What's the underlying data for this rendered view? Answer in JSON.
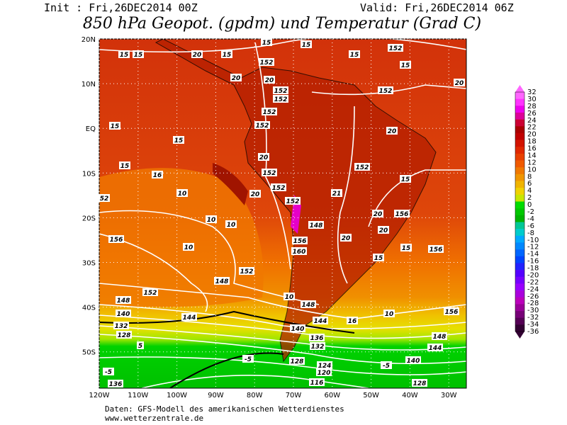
{
  "header": {
    "init": "Init : Fri,26DEC2014 00Z",
    "valid": "Valid: Fri,26DEC2014 06Z",
    "title": "850 hPa Geopot. (gpdm) und Temperatur (Grad C)"
  },
  "map": {
    "lat_labels": [
      "20N",
      "10N",
      "EQ",
      "10S",
      "20S",
      "30S",
      "40S",
      "50S"
    ],
    "lon_labels": [
      "120W",
      "110W",
      "100W",
      "90W",
      "80W",
      "70W",
      "60W",
      "50W",
      "40W",
      "30W"
    ],
    "contour_labels": [
      15,
      15,
      20,
      15,
      15,
      15,
      15,
      152,
      15,
      152,
      20,
      20,
      152,
      152,
      152,
      152,
      20,
      15,
      152,
      15,
      20,
      20,
      15,
      16,
      152,
      152,
      15,
      20,
      152,
      21,
      152,
      10,
      52,
      10,
      10,
      156,
      10,
      20,
      156,
      20,
      148,
      156,
      20,
      160,
      15,
      15,
      156,
      152,
      148,
      152,
      10,
      148,
      148,
      140,
      132,
      144,
      16,
      10,
      156,
      144,
      140,
      148,
      128,
      5,
      136,
      132,
      144,
      140,
      128,
      124,
      -5,
      -5,
      120,
      -5,
      116,
      136,
      128
    ]
  },
  "colorbar": {
    "labels": [
      32,
      30,
      28,
      26,
      24,
      22,
      20,
      18,
      16,
      14,
      12,
      10,
      8,
      6,
      4,
      2,
      0,
      -2,
      -4,
      -6,
      -8,
      -10,
      -12,
      -14,
      -16,
      -18,
      -20,
      -22,
      -24,
      -26,
      -28,
      -30,
      -32,
      -34,
      -36
    ],
    "colors": [
      "#ff66ff",
      "#ff33ff",
      "#ee00ee",
      "#dd0099",
      "#cc0033",
      "#aa0000",
      "#c00000",
      "#d21400",
      "#e02800",
      "#e84000",
      "#f05a00",
      "#f07800",
      "#f09600",
      "#f0b400",
      "#f0d200",
      "#c8e600",
      "#00dc00",
      "#00c800",
      "#00b400",
      "#00c896",
      "#00cccc",
      "#00aaff",
      "#0088ff",
      "#0066ff",
      "#0044ff",
      "#2222ff",
      "#5500ff",
      "#7700ff",
      "#9900ff",
      "#aa00dd",
      "#bb00bb",
      "#990099",
      "#770077",
      "#550055",
      "#330033"
    ]
  },
  "footer": {
    "source": "Daten: GFS-Modell des amerikanischen Wetterdienstes",
    "url": "www.wetterzentrale.de"
  }
}
